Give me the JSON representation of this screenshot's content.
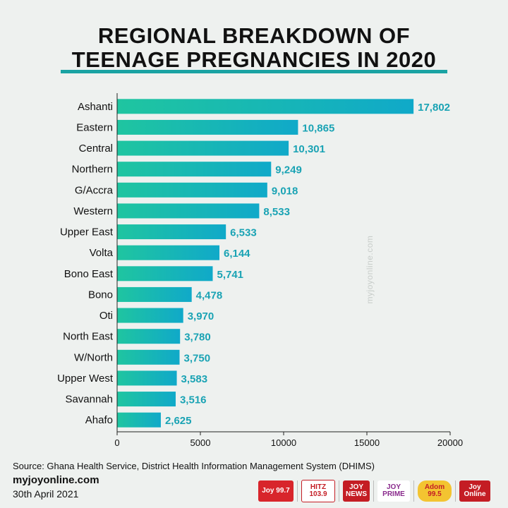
{
  "title": {
    "line1": "REGIONAL BREAKDOWN OF",
    "line2": "TEENAGE PREGNANCIES IN 2020"
  },
  "chart_data": {
    "type": "bar",
    "orientation": "horizontal",
    "categories": [
      "Ashanti",
      "Eastern",
      "Central",
      "Northern",
      "G/Accra",
      "Western",
      "Upper East",
      "Volta",
      "Bono East",
      "Bono",
      "Oti",
      "North East",
      "W/North",
      "Upper West",
      "Savannah",
      "Ahafo"
    ],
    "values": [
      17802,
      10865,
      10301,
      9249,
      9018,
      8533,
      6533,
      6144,
      5741,
      4478,
      3970,
      3780,
      3750,
      3583,
      3516,
      2625
    ],
    "data_labels": [
      "17,802",
      "10,865",
      "10,301",
      "9,249",
      "9,018",
      "8,533",
      "6,533",
      "6,144",
      "5,741",
      "4,478",
      "3,970",
      "3,780",
      "3,750",
      "3,583",
      "3,516",
      "2,625"
    ],
    "xticks": [
      "0",
      "5000",
      "10000",
      "15000",
      "20000"
    ],
    "xtick_values": [
      0,
      5000,
      10000,
      15000,
      20000
    ],
    "xlim": [
      0,
      20000
    ],
    "grid": false,
    "colors": {
      "bar_start": "#1fc5a0",
      "bar_end": "#10a9c9",
      "label": "#1aa3b4"
    }
  },
  "watermark": "myjoyonline.com",
  "footer": {
    "source": "Source: Ghana Health Service, District Health Information Management  System (DHIMS)",
    "site": "myjoyonline.com",
    "date": "30th April 2021"
  },
  "logos": {
    "joy997": "Joy 99.7",
    "hitz": "HITZ 103.9",
    "joynews": "JOY NEWS",
    "joyprime": "JOY PRIME",
    "adom": "Adom 99.5",
    "joyonline": "Joy Online"
  }
}
